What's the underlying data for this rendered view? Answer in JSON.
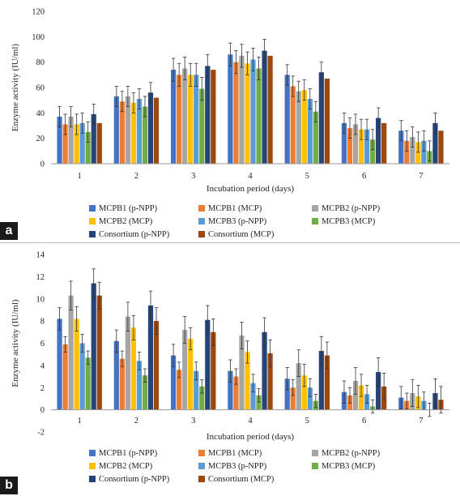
{
  "panels": [
    {
      "tag": "a"
    },
    {
      "tag": "b"
    }
  ],
  "colors": {
    "MCPB1 (p-NPP)": "#4472c4",
    "MCPB1 (MCP)": "#ed7d31",
    "MCPB2 (p-NPP)": "#a5a5a5",
    "MCPB2 (MCP)": "#ffc000",
    "MCPB3 (p-NPP)": "#5b9bd5",
    "MCPB3 (MCP)": "#70ad47",
    "Consortium (p-NPP)": "#264478",
    "Consortium (MCP)": "#9e480e"
  },
  "chart_data": [
    {
      "type": "bar",
      "xlabel": "Incubation period (days)",
      "ylabel": "Enzyme activity (IU/ml)",
      "ylim": [
        0,
        120
      ],
      "yticks": [
        0,
        20,
        40,
        60,
        80,
        100,
        120
      ],
      "categories": [
        "1",
        "2",
        "3",
        "4",
        "5",
        "6",
        "7"
      ],
      "legend_position": "bottom",
      "series": [
        {
          "name": "MCPB1 (p-NPP)",
          "values": [
            37,
            53,
            74,
            86,
            70,
            32,
            26
          ],
          "errors": [
            8,
            8,
            9,
            9,
            8,
            8,
            8
          ]
        },
        {
          "name": "MCPB1 (MCP)",
          "values": [
            31,
            49,
            70,
            80,
            61,
            28,
            18
          ],
          "errors": [
            8,
            8,
            9,
            9,
            8,
            8,
            8
          ]
        },
        {
          "name": "MCPB2 (p-NPP)",
          "values": [
            37,
            53,
            75,
            85,
            57,
            31,
            21
          ],
          "errors": [
            8,
            8,
            9,
            9,
            8,
            8,
            8
          ]
        },
        {
          "name": "MCPB2 (MCP)",
          "values": [
            31,
            48,
            70,
            79,
            58,
            27,
            17
          ],
          "errors": [
            8,
            8,
            9,
            9,
            8,
            8,
            8
          ]
        },
        {
          "name": "MCPB3 (p-NPP)",
          "values": [
            32,
            51,
            70,
            82,
            51,
            27,
            18
          ],
          "errors": [
            8,
            8,
            9,
            9,
            8,
            8,
            8
          ]
        },
        {
          "name": "MCPB3 (MCP)",
          "values": [
            25,
            45,
            59,
            75,
            41,
            19,
            10
          ],
          "errors": [
            8,
            8,
            9,
            9,
            8,
            8,
            8
          ]
        },
        {
          "name": "Consortium (p-NPP)",
          "values": [
            39,
            56,
            77,
            89,
            72,
            36,
            32
          ],
          "errors": [
            8,
            8,
            9,
            9,
            8,
            8,
            8
          ]
        },
        {
          "name": "Consortium (MCP)",
          "values": [
            32,
            52,
            74,
            85,
            67,
            32,
            26
          ],
          "errors": [
            0,
            0,
            0,
            0,
            0,
            0,
            0
          ]
        }
      ]
    },
    {
      "type": "bar",
      "xlabel": "Incubation period (days)",
      "ylabel": "Enzyme activity (IU/ml)",
      "ylim": [
        -2,
        14
      ],
      "yticks": [
        -2,
        0,
        2,
        4,
        6,
        8,
        10,
        12,
        14
      ],
      "categories": [
        "1",
        "2",
        "3",
        "4",
        "5",
        "6",
        "7"
      ],
      "legend_position": "bottom",
      "series": [
        {
          "name": "MCPB1 (p-NPP)",
          "values": [
            8.2,
            6.2,
            4.9,
            3.5,
            2.8,
            1.6,
            1.1
          ],
          "errors": [
            1.0,
            1.0,
            1.0,
            1.0,
            1.0,
            1.0,
            1.0
          ]
        },
        {
          "name": "MCPB1 (MCP)",
          "values": [
            5.9,
            4.6,
            3.6,
            3.0,
            2.0,
            1.3,
            0.8
          ],
          "errors": [
            0.7,
            0.7,
            0.7,
            0.7,
            0.7,
            0.7,
            0.7
          ]
        },
        {
          "name": "MCPB2 (p-NPP)",
          "values": [
            10.3,
            8.4,
            7.2,
            6.7,
            4.2,
            2.6,
            1.5
          ],
          "errors": [
            1.3,
            1.3,
            1.2,
            1.2,
            1.2,
            1.2,
            1.2
          ]
        },
        {
          "name": "MCPB2 (MCP)",
          "values": [
            8.2,
            7.4,
            6.4,
            5.2,
            3.1,
            2.2,
            1.2
          ],
          "errors": [
            1.1,
            1.1,
            1.0,
            1.0,
            1.0,
            1.0,
            1.0
          ]
        },
        {
          "name": "MCPB3 (p-NPP)",
          "values": [
            6.0,
            4.4,
            3.5,
            2.4,
            2.0,
            1.4,
            0.8
          ],
          "errors": [
            0.8,
            0.8,
            0.8,
            0.8,
            0.8,
            0.8,
            0.8
          ]
        },
        {
          "name": "MCPB3 (MCP)",
          "values": [
            4.7,
            3.1,
            2.1,
            1.3,
            0.8,
            0.3,
            0.0
          ],
          "errors": [
            0.6,
            0.6,
            0.6,
            0.6,
            0.6,
            0.6,
            0.6
          ]
        },
        {
          "name": "Consortium (p-NPP)",
          "values": [
            11.4,
            9.4,
            8.1,
            7.0,
            5.3,
            3.4,
            1.5
          ],
          "errors": [
            1.3,
            1.3,
            1.3,
            1.3,
            1.3,
            1.3,
            1.3
          ]
        },
        {
          "name": "Consortium (MCP)",
          "values": [
            10.3,
            8.0,
            7.0,
            5.1,
            4.9,
            2.1,
            0.9
          ],
          "errors": [
            1.2,
            1.2,
            1.2,
            1.2,
            1.2,
            1.2,
            1.2
          ]
        }
      ]
    }
  ]
}
